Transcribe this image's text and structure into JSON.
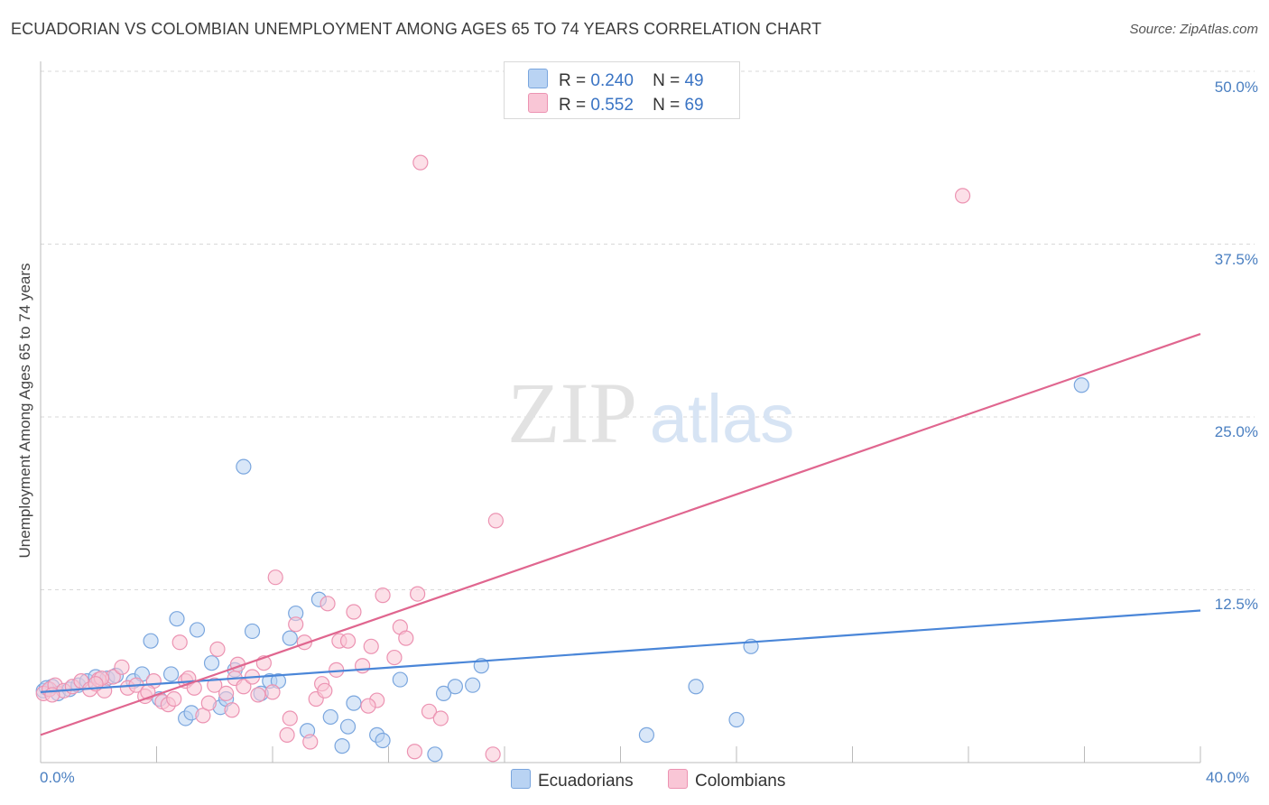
{
  "title": "ECUADORIAN VS COLOMBIAN UNEMPLOYMENT AMONG AGES 65 TO 74 YEARS CORRELATION CHART",
  "source": "Source: ZipAtlas.com",
  "watermark": {
    "zip": "ZIP",
    "atlas": "atlas"
  },
  "legend": {
    "r_label": "R =",
    "n_label": "N =",
    "rows": [
      {
        "name": "Ecuadorians",
        "r": "0.240",
        "n": "49",
        "fill": "#b9d3f3",
        "stroke": "#7aa6de"
      },
      {
        "name": "Colombians",
        "r": "0.552",
        "n": "69",
        "fill": "#f9c6d6",
        "stroke": "#ec93b2"
      }
    ]
  },
  "chart_data": {
    "type": "scatter",
    "title": "ECUADORIAN VS COLOMBIAN UNEMPLOYMENT AMONG AGES 65 TO 74 YEARS CORRELATION CHART",
    "xlabel": "",
    "ylabel": "Unemployment Among Ages 65 to 74 years",
    "xlim": [
      0,
      40
    ],
    "ylim": [
      0,
      50
    ],
    "x_tick_labels": [
      "0.0%",
      "40.0%"
    ],
    "y_ticks": [
      12.5,
      25.0,
      37.5,
      50.0
    ],
    "y_tick_labels": [
      "12.5%",
      "25.0%",
      "37.5%",
      "50.0%"
    ],
    "series": [
      {
        "name": "Ecuadorians",
        "color": "#4a86d8",
        "marker_fill": "#b9d3f3",
        "marker_stroke": "#7aa6de",
        "trend": {
          "x": [
            0,
            40
          ],
          "y": [
            5.1,
            11.0
          ]
        },
        "points": [
          [
            0.1,
            5.2
          ],
          [
            0.4,
            5.5
          ],
          [
            0.6,
            5.0
          ],
          [
            1.0,
            5.3
          ],
          [
            1.3,
            5.6
          ],
          [
            1.6,
            5.9
          ],
          [
            1.9,
            6.2
          ],
          [
            2.3,
            6.1
          ],
          [
            2.6,
            6.3
          ],
          [
            3.2,
            5.9
          ],
          [
            3.5,
            6.4
          ],
          [
            3.8,
            8.8
          ],
          [
            4.1,
            4.6
          ],
          [
            4.5,
            6.4
          ],
          [
            4.7,
            10.4
          ],
          [
            5.0,
            3.2
          ],
          [
            5.2,
            3.6
          ],
          [
            5.4,
            9.6
          ],
          [
            5.9,
            7.2
          ],
          [
            6.2,
            4.0
          ],
          [
            6.4,
            4.6
          ],
          [
            6.7,
            6.7
          ],
          [
            7.0,
            21.4
          ],
          [
            7.3,
            9.5
          ],
          [
            7.6,
            5.0
          ],
          [
            7.9,
            5.9
          ],
          [
            8.2,
            5.9
          ],
          [
            8.6,
            9.0
          ],
          [
            8.8,
            10.8
          ],
          [
            9.2,
            2.3
          ],
          [
            9.6,
            11.8
          ],
          [
            10.0,
            3.3
          ],
          [
            10.4,
            1.2
          ],
          [
            10.6,
            2.6
          ],
          [
            10.8,
            4.3
          ],
          [
            11.6,
            2.0
          ],
          [
            11.8,
            1.6
          ],
          [
            12.4,
            6.0
          ],
          [
            13.6,
            0.6
          ],
          [
            13.9,
            5.0
          ],
          [
            14.3,
            5.5
          ],
          [
            14.9,
            5.6
          ],
          [
            15.2,
            7.0
          ],
          [
            20.9,
            2.0
          ],
          [
            22.6,
            5.5
          ],
          [
            24.0,
            3.1
          ],
          [
            24.5,
            8.4
          ],
          [
            35.9,
            27.3
          ],
          [
            0.2,
            5.4
          ]
        ]
      },
      {
        "name": "Colombians",
        "color": "#e0668f",
        "marker_fill": "#f9c6d6",
        "marker_stroke": "#ec93b2",
        "trend": {
          "x": [
            0,
            40
          ],
          "y": [
            2.0,
            31.0
          ]
        },
        "points": [
          [
            0.1,
            5.0
          ],
          [
            0.3,
            5.3
          ],
          [
            0.5,
            5.6
          ],
          [
            0.8,
            5.2
          ],
          [
            1.1,
            5.5
          ],
          [
            1.4,
            5.9
          ],
          [
            1.7,
            5.3
          ],
          [
            2.0,
            6.0
          ],
          [
            2.2,
            5.2
          ],
          [
            2.5,
            6.2
          ],
          [
            2.8,
            6.9
          ],
          [
            3.0,
            5.4
          ],
          [
            3.3,
            5.6
          ],
          [
            3.6,
            4.8
          ],
          [
            3.9,
            5.9
          ],
          [
            4.2,
            4.4
          ],
          [
            4.4,
            4.2
          ],
          [
            4.6,
            4.6
          ],
          [
            4.8,
            8.7
          ],
          [
            5.0,
            5.9
          ],
          [
            5.1,
            6.1
          ],
          [
            5.3,
            5.4
          ],
          [
            5.6,
            3.4
          ],
          [
            5.8,
            4.3
          ],
          [
            6.0,
            5.6
          ],
          [
            6.1,
            8.2
          ],
          [
            6.4,
            5.0
          ],
          [
            6.7,
            6.1
          ],
          [
            6.8,
            7.1
          ],
          [
            7.0,
            5.5
          ],
          [
            7.3,
            6.2
          ],
          [
            7.5,
            4.9
          ],
          [
            7.7,
            7.2
          ],
          [
            8.0,
            5.1
          ],
          [
            8.1,
            13.4
          ],
          [
            8.5,
            2.0
          ],
          [
            8.6,
            3.2
          ],
          [
            8.8,
            10.0
          ],
          [
            9.1,
            8.7
          ],
          [
            9.3,
            1.5
          ],
          [
            9.5,
            4.6
          ],
          [
            9.7,
            5.7
          ],
          [
            9.9,
            11.5
          ],
          [
            10.2,
            6.7
          ],
          [
            10.3,
            8.8
          ],
          [
            10.6,
            8.8
          ],
          [
            10.8,
            10.9
          ],
          [
            11.1,
            7.0
          ],
          [
            11.4,
            8.4
          ],
          [
            11.6,
            4.5
          ],
          [
            11.8,
            12.1
          ],
          [
            12.2,
            7.6
          ],
          [
            12.4,
            9.8
          ],
          [
            12.6,
            9.0
          ],
          [
            12.9,
            0.8
          ],
          [
            13.0,
            12.2
          ],
          [
            13.4,
            3.7
          ],
          [
            13.8,
            3.2
          ],
          [
            13.1,
            43.4
          ],
          [
            15.6,
            0.6
          ],
          [
            15.7,
            17.5
          ],
          [
            31.8,
            41.0
          ],
          [
            2.1,
            6.1
          ],
          [
            3.7,
            5.1
          ],
          [
            6.6,
            3.8
          ],
          [
            9.8,
            5.2
          ],
          [
            11.3,
            4.1
          ],
          [
            0.4,
            4.9
          ],
          [
            1.9,
            5.7
          ]
        ]
      }
    ]
  }
}
